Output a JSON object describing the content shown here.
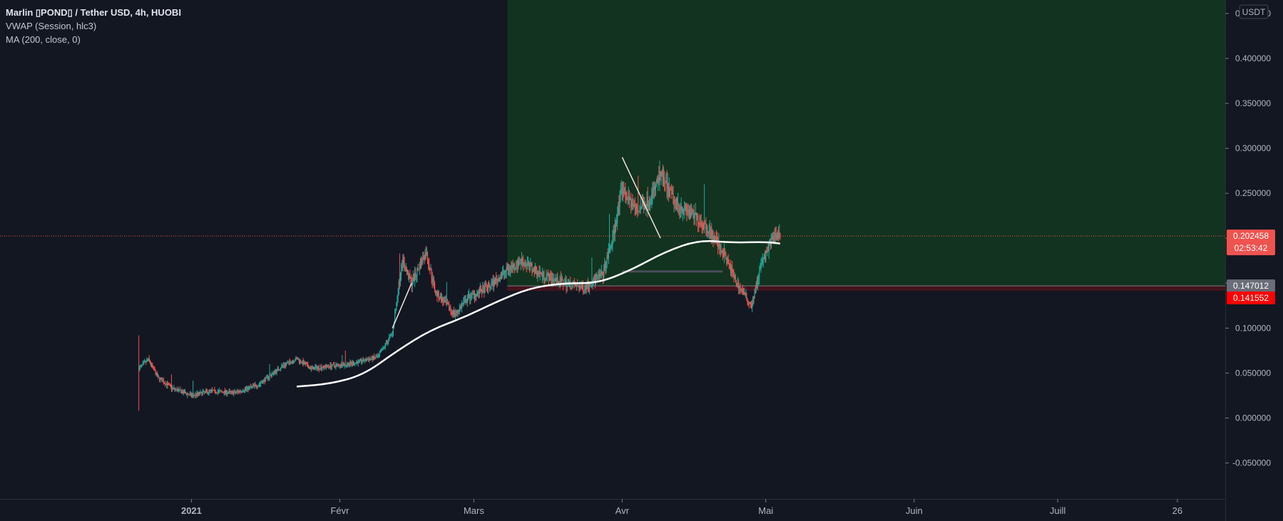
{
  "legend": {
    "title": "Marlin ▯POND▯ / Tether USD, 4h, HUOBI",
    "indicator1": "VWAP (Session, hlc3)",
    "indicator2": "MA (200, close, 0)"
  },
  "price_axis": {
    "currency_button": "USDT",
    "ticks": [
      "0.450000",
      "0.400000",
      "0.350000",
      "0.300000",
      "0.250000",
      "0.200000",
      "0.150000",
      "0.100000",
      "0.050000",
      "0.000000",
      "-0.050000"
    ]
  },
  "price_tags": {
    "last_price": "0.202458",
    "countdown": "02:53:42",
    "entry": "0.147012",
    "stop": "0.141552"
  },
  "time_axis": {
    "labels": [
      "2021",
      "Févr",
      "Mars",
      "Avr",
      "Mai",
      "Juin",
      "Juill",
      "26"
    ]
  },
  "colors": {
    "background": "#131722",
    "bull": "#26a69a",
    "bear": "#ef5350",
    "profit_zone": "#12331f",
    "loss_zone": "#45141d",
    "ma_line": "#ffffff",
    "last_price_tag": "#ef5350",
    "stop_tag": "#ff0000"
  },
  "chart_data": {
    "type": "candlestick",
    "timeframe": "4h",
    "ylim": [
      -0.09,
      0.465
    ],
    "xlim": [
      "2020-11-22",
      "2021-08-05"
    ],
    "price_path": [
      [
        "2020-12-21",
        0.055
      ],
      [
        "2020-12-23",
        0.065
      ],
      [
        "2020-12-25",
        0.045
      ],
      [
        "2020-12-28",
        0.033
      ],
      [
        "2021-01-01",
        0.025
      ],
      [
        "2021-01-05",
        0.03
      ],
      [
        "2021-01-10",
        0.028
      ],
      [
        "2021-01-15",
        0.037
      ],
      [
        "2021-01-20",
        0.058
      ],
      [
        "2021-01-23",
        0.066
      ],
      [
        "2021-01-26",
        0.055
      ],
      [
        "2021-01-30",
        0.058
      ],
      [
        "2021-02-03",
        0.06
      ],
      [
        "2021-02-09",
        0.068
      ],
      [
        "2021-02-12",
        0.095
      ],
      [
        "2021-02-14",
        0.175
      ],
      [
        "2021-02-16",
        0.15
      ],
      [
        "2021-02-19",
        0.185
      ],
      [
        "2021-02-21",
        0.14
      ],
      [
        "2021-02-25",
        0.115
      ],
      [
        "2021-02-28",
        0.135
      ],
      [
        "2021-03-04",
        0.145
      ],
      [
        "2021-03-08",
        0.165
      ],
      [
        "2021-03-11",
        0.175
      ],
      [
        "2021-03-15",
        0.16
      ],
      [
        "2021-03-20",
        0.15
      ],
      [
        "2021-03-24",
        0.145
      ],
      [
        "2021-03-28",
        0.16
      ],
      [
        "2021-03-30",
        0.2
      ],
      [
        "2021-04-01",
        0.255
      ],
      [
        "2021-04-04",
        0.23
      ],
      [
        "2021-04-07",
        0.245
      ],
      [
        "2021-04-09",
        0.27
      ],
      [
        "2021-04-12",
        0.24
      ],
      [
        "2021-04-16",
        0.225
      ],
      [
        "2021-04-19",
        0.21
      ],
      [
        "2021-04-22",
        0.185
      ],
      [
        "2021-04-25",
        0.15
      ],
      [
        "2021-04-28",
        0.125
      ],
      [
        "2021-04-30",
        0.17
      ],
      [
        "2021-05-03",
        0.205
      ],
      [
        "2021-05-04",
        0.2025
      ]
    ],
    "ma200": [
      [
        "2021-01-23",
        0.035
      ],
      [
        "2021-01-30",
        0.038
      ],
      [
        "2021-02-06",
        0.048
      ],
      [
        "2021-02-13",
        0.075
      ],
      [
        "2021-02-20",
        0.098
      ],
      [
        "2021-02-27",
        0.112
      ],
      [
        "2021-03-06",
        0.13
      ],
      [
        "2021-03-13",
        0.145
      ],
      [
        "2021-03-20",
        0.15
      ],
      [
        "2021-03-27",
        0.15
      ],
      [
        "2021-04-03",
        0.165
      ],
      [
        "2021-04-10",
        0.185
      ],
      [
        "2021-04-17",
        0.198
      ],
      [
        "2021-04-24",
        0.195
      ],
      [
        "2021-05-01",
        0.196
      ],
      [
        "2021-05-04",
        0.194
      ]
    ],
    "position": {
      "start": "2021-03-08",
      "end": "2021-08-05",
      "entry": 0.147012,
      "target": 0.465,
      "stop": 0.141552
    },
    "last_price": 0.202458,
    "drawings": [
      {
        "type": "trendline",
        "points": [
          [
            "2021-02-12",
            0.1
          ],
          [
            "2021-02-16",
            0.15
          ]
        ]
      },
      {
        "type": "trendline",
        "points": [
          [
            "2021-04-01",
            0.29
          ],
          [
            "2021-04-09",
            0.2
          ]
        ]
      },
      {
        "type": "hline",
        "points": [
          [
            "2021-04-01",
            0.163
          ],
          [
            "2021-04-22",
            0.163
          ]
        ]
      }
    ],
    "x_ticks": [
      [
        "2021-01-01",
        "2021"
      ],
      [
        "2021-02-01",
        "Févr"
      ],
      [
        "2021-03-01",
        "Mars"
      ],
      [
        "2021-04-01",
        "Avr"
      ],
      [
        "2021-05-01",
        "Mai"
      ],
      [
        "2021-06-01",
        "Juin"
      ],
      [
        "2021-07-01",
        "Juill"
      ],
      [
        "2021-07-26",
        "26"
      ]
    ],
    "y_ticks": [
      0.45,
      0.4,
      0.35,
      0.3,
      0.25,
      0.2,
      0.15,
      0.1,
      0.05,
      0.0,
      -0.05
    ]
  }
}
